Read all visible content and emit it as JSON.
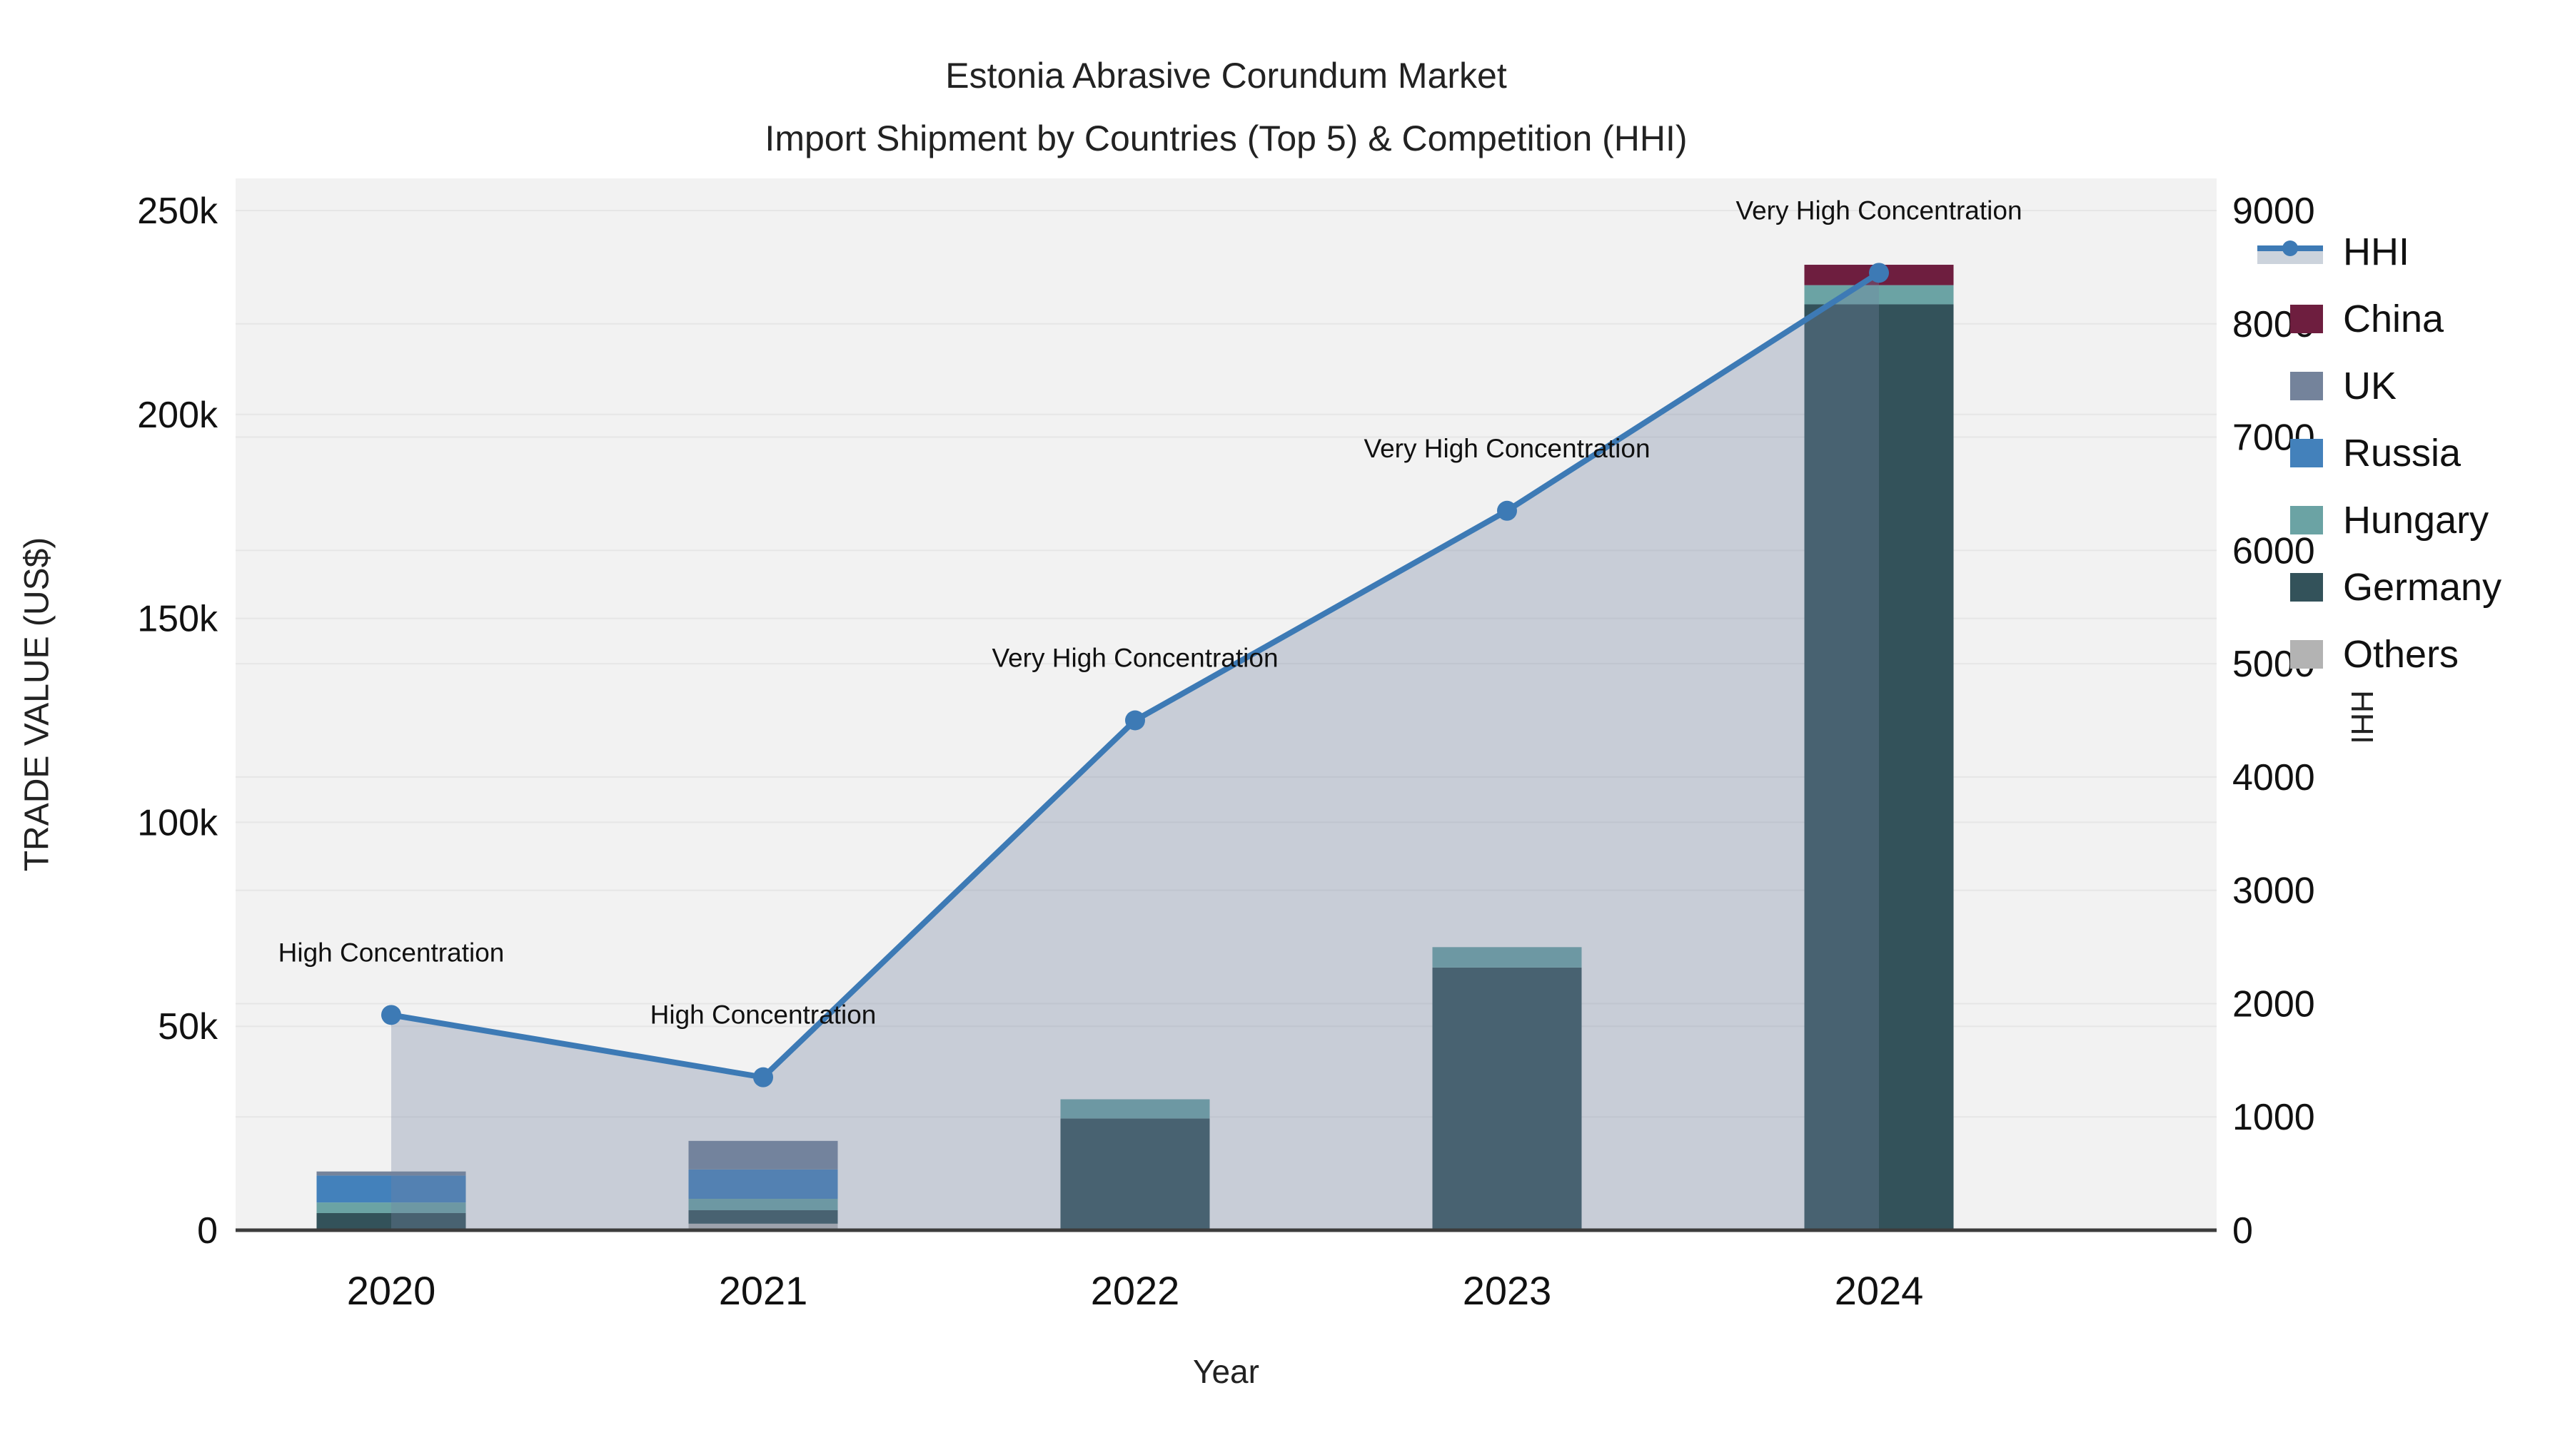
{
  "title": {
    "line1": "Estonia Abrasive Corundum Market",
    "line2": "Import Shipment by Countries (Top 5) & Competition (HHI)"
  },
  "chart_data": {
    "type": "combo: stacked-bar + line",
    "x": [
      "2020",
      "2021",
      "2022",
      "2023",
      "2024"
    ],
    "xlabel": "Year",
    "left_axis": {
      "label": "TRADE VALUE (US$)",
      "tick_labels": [
        "0",
        "50k",
        "100k",
        "150k",
        "200k",
        "250k"
      ],
      "tick_values": [
        0,
        50000,
        100000,
        150000,
        200000,
        250000
      ],
      "range": [
        0,
        250000
      ]
    },
    "right_axis": {
      "label": "HHI",
      "tick_labels": [
        "0",
        "1000",
        "2000",
        "3000",
        "4000",
        "5000",
        "6000",
        "7000",
        "8000",
        "9000"
      ],
      "tick_values": [
        0,
        1000,
        2000,
        3000,
        4000,
        5000,
        6000,
        7000,
        8000,
        9000
      ],
      "range": [
        0,
        9000
      ]
    },
    "bar_series_stack_bottom_to_top": [
      {
        "name": "Others",
        "color": "#b3b3b3",
        "values": [
          400,
          1600,
          400,
          400,
          0
        ]
      },
      {
        "name": "Germany",
        "color": "#33525a",
        "values": [
          3800,
          3300,
          27000,
          64000,
          227000
        ]
      },
      {
        "name": "Hungary",
        "color": "#6ba3a4",
        "values": [
          2600,
          2800,
          4700,
          5000,
          4700
        ]
      },
      {
        "name": "Russia",
        "color": "#4381bb",
        "values": [
          6600,
          7200,
          0,
          0,
          0
        ]
      },
      {
        "name": "UK",
        "color": "#74839b",
        "values": [
          1000,
          7000,
          0,
          0,
          0
        ]
      },
      {
        "name": "China",
        "color": "#6e1e3f",
        "values": [
          0,
          0,
          0,
          0,
          5000
        ]
      }
    ],
    "line_series": {
      "name": "HHI",
      "color": "#3d7ab5",
      "fill_color": "rgba(115,130,160,0.33)",
      "values": [
        1900,
        1350,
        4500,
        6350,
        8450
      ]
    },
    "annotations": [
      {
        "x": "2020",
        "text": "High Concentration"
      },
      {
        "x": "2021",
        "text": "High Concentration"
      },
      {
        "x": "2022",
        "text": "Very High Concentration"
      },
      {
        "x": "2023",
        "text": "Very High Concentration"
      },
      {
        "x": "2024",
        "text": "Very High Concentration"
      }
    ],
    "legend": [
      {
        "label": "HHI",
        "symbol": "line-marker-band"
      },
      {
        "label": "China",
        "symbol": "swatch",
        "color": "#6e1e3f"
      },
      {
        "label": "UK",
        "symbol": "swatch",
        "color": "#74839b"
      },
      {
        "label": "Russia",
        "symbol": "swatch",
        "color": "#4381bb"
      },
      {
        "label": "Hungary",
        "symbol": "swatch",
        "color": "#6ba3a4"
      },
      {
        "label": "Germany",
        "symbol": "swatch",
        "color": "#33525a"
      },
      {
        "label": "Others",
        "symbol": "swatch",
        "color": "#b3b3b3"
      }
    ],
    "style": {
      "plot_bg": "#f2f2f2",
      "grid_color": "#e6e6e6",
      "axis_line_color": "#3c3c3c",
      "grid_on": true,
      "legend_position": "right"
    }
  }
}
